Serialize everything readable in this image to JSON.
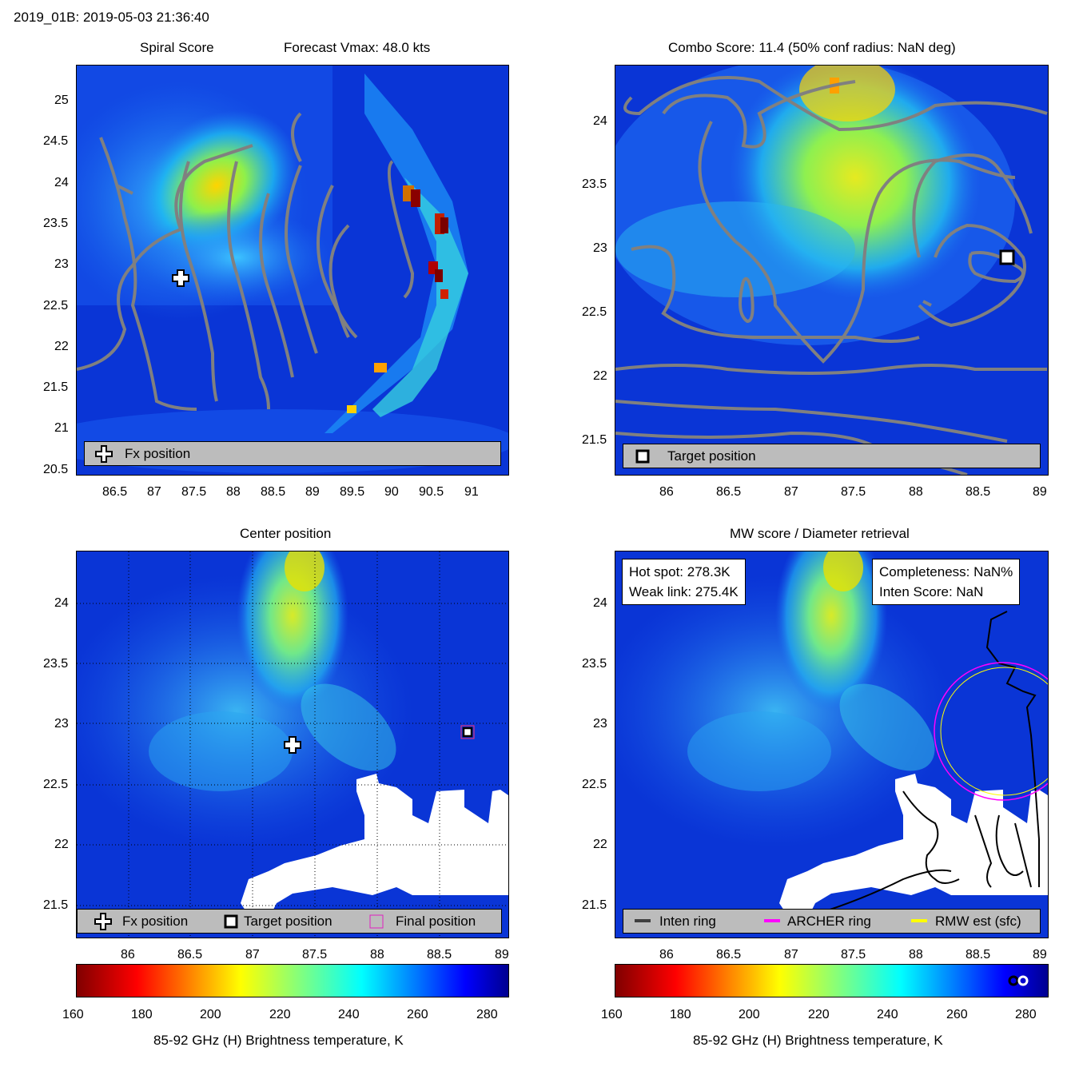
{
  "header": {
    "title": "2019_01B: 2019-05-03 21:36:40"
  },
  "panels": {
    "spiral": {
      "title_left": "Spiral Score",
      "title_right": "Forecast Vmax: 48.0 kts",
      "xticks": [
        "86.5",
        "87",
        "87.5",
        "88",
        "88.5",
        "89",
        "89.5",
        "90",
        "90.5",
        "91"
      ],
      "yticks": [
        "25",
        "24.5",
        "24",
        "23.5",
        "23",
        "22.5",
        "22",
        "21.5",
        "21",
        "20.5"
      ],
      "legend": "Fx position"
    },
    "combo": {
      "title": "Combo Score: 11.4  (50% conf radius: NaN deg)",
      "xticks": [
        "86",
        "86.5",
        "87",
        "87.5",
        "88",
        "88.5",
        "89"
      ],
      "yticks": [
        "24",
        "23.5",
        "23",
        "22.5",
        "22",
        "21.5"
      ],
      "legend": "Target position"
    },
    "center": {
      "title": "Center position",
      "xticks": [
        "86",
        "86.5",
        "87",
        "87.5",
        "88",
        "88.5",
        "89"
      ],
      "yticks": [
        "24",
        "23.5",
        "23",
        "22.5",
        "22",
        "21.5"
      ],
      "legend": [
        "Fx position",
        "Target position",
        "Final position"
      ]
    },
    "mw": {
      "title": "MW score / Diameter retrieval",
      "xticks": [
        "86",
        "86.5",
        "87",
        "87.5",
        "88",
        "88.5",
        "89"
      ],
      "yticks": [
        "24",
        "23.5",
        "23",
        "22.5",
        "22",
        "21.5"
      ],
      "hot_spot": "Hot spot: 278.3K",
      "weak_link": "Weak link: 275.4K",
      "completeness": "Completeness: NaN%",
      "inten_score": "Inten Score: NaN",
      "legend": [
        "Inten ring",
        "ARCHER ring",
        "RMW est (sfc)"
      ]
    }
  },
  "colorbar": {
    "ticks": [
      "160",
      "180",
      "200",
      "220",
      "240",
      "260",
      "280"
    ],
    "label": "85-92 GHz (H) Brightness temperature, K"
  },
  "colors": {
    "background_field": "#0a32d8",
    "contour": "#808080",
    "legend_bg": "#bcbcbc",
    "archer_ring": "#ff00ff",
    "rmw_ring": "#ffff00",
    "inten_ring": "#3f3f3f"
  }
}
